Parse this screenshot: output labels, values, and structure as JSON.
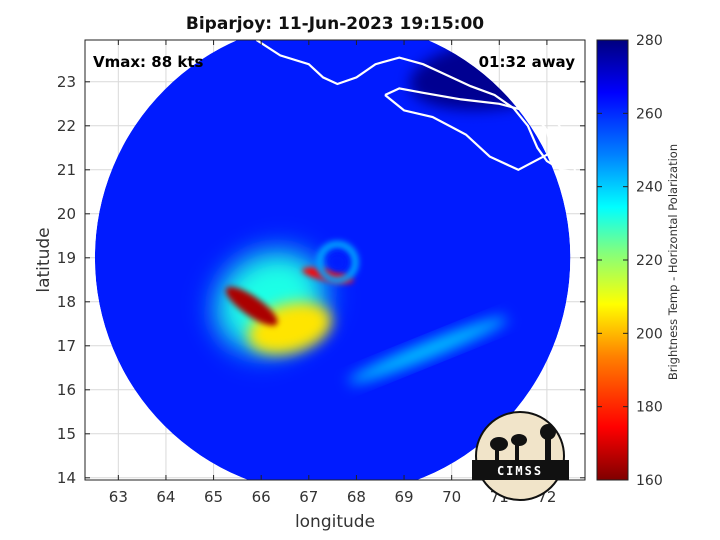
{
  "chart_data": {
    "type": "heatmap",
    "title": "Biparjoy: 11-Jun-2023 19:15:00",
    "xlabel": "longitude",
    "ylabel": "latitude",
    "xlim": [
      62.3,
      72.8
    ],
    "ylim": [
      13.95,
      23.95
    ],
    "x_ticks": [
      63,
      64,
      65,
      66,
      67,
      68,
      69,
      70,
      71,
      72
    ],
    "y_ticks": [
      14,
      15,
      16,
      17,
      18,
      19,
      20,
      21,
      22,
      23
    ],
    "grid": true,
    "annotations": {
      "left": "Vmax: 88 kts",
      "right": "01:32 away"
    },
    "colorbar": {
      "label": "Brightness Temp - Horizontal Polarization",
      "range": [
        160,
        280
      ],
      "ticks": [
        160,
        180,
        200,
        220,
        240,
        260,
        280
      ],
      "colors": [
        "#7f0000",
        "#ff0000",
        "#ff8000",
        "#ffff00",
        "#80ff80",
        "#00ffff",
        "#0080ff",
        "#0000ff",
        "#00007f"
      ]
    },
    "swath": {
      "center": [
        67.5,
        19.0
      ],
      "radius_deg": 5.2
    },
    "storm_center": [
      67.6,
      18.9
    ],
    "features": [
      {
        "name": "background ocean",
        "lon": 67.5,
        "lat": 19.0,
        "value": 262
      },
      {
        "name": "coastal land region",
        "lon": 71.0,
        "lat": 23.2,
        "value": 278
      },
      {
        "name": "outer rainband",
        "lon": 66.2,
        "lat": 18.0,
        "value": 232
      },
      {
        "name": "inner rainband",
        "lon": 66.6,
        "lat": 17.4,
        "value": 205
      },
      {
        "name": "intense convection (southwest)",
        "lon": 65.8,
        "lat": 17.9,
        "value": 165
      },
      {
        "name": "eyewall arc (northeast)",
        "lon": 67.4,
        "lat": 18.6,
        "value": 175
      },
      {
        "name": "southeastern rainband",
        "lon": 69.5,
        "lat": 16.9,
        "value": 240
      }
    ],
    "logo_text": "CIMSS"
  }
}
